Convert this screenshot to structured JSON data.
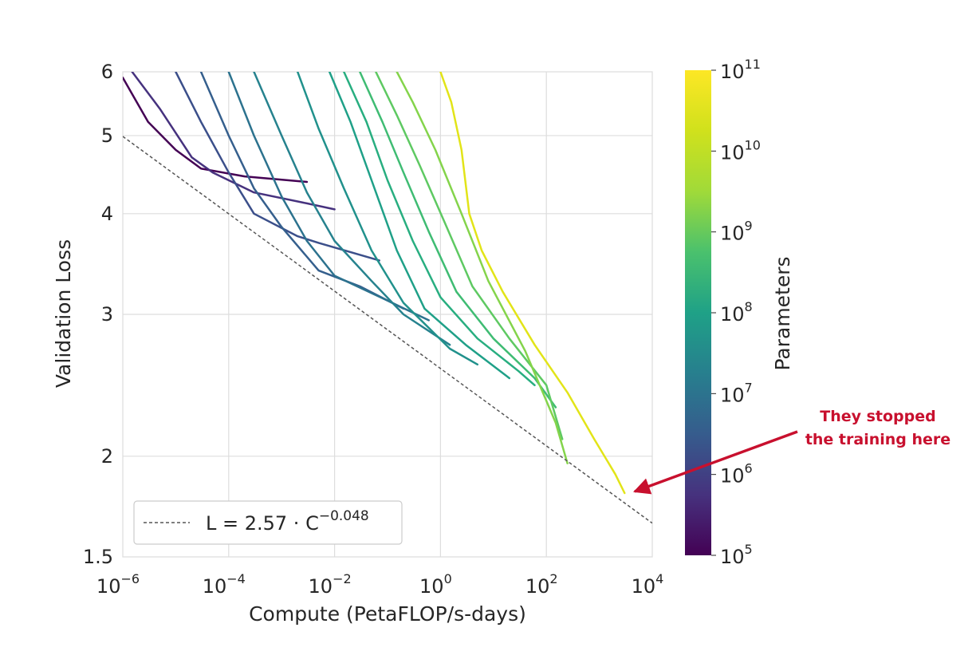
{
  "chart_data": {
    "type": "line",
    "xlabel": "Compute (PetaFLOP/s-days)",
    "ylabel": "Validation Loss",
    "x_scale": "log",
    "y_scale": "log",
    "xlim": [
      1e-06,
      10000.0
    ],
    "ylim": [
      1.5,
      6
    ],
    "x_ticks": [
      {
        "base": "10",
        "exp": "−6"
      },
      {
        "base": "10",
        "exp": "−4"
      },
      {
        "base": "10",
        "exp": "−2"
      },
      {
        "base": "10",
        "exp": "0"
      },
      {
        "base": "10",
        "exp": "2"
      },
      {
        "base": "10",
        "exp": "4"
      }
    ],
    "x_tick_values": [
      1e-06,
      0.0001,
      0.01,
      1,
      100,
      10000
    ],
    "y_ticks": [
      "1.5",
      "2",
      "3",
      "4",
      "5",
      "6"
    ],
    "y_tick_values": [
      1.5,
      2,
      3,
      4,
      5,
      6
    ],
    "grid": true,
    "fit_line": {
      "label_prefix": "L = 2.57 · C",
      "label_exp": "−0.048",
      "a": 2.57,
      "b": -0.048
    },
    "legend_position": "lower-left",
    "colorbar": {
      "label": "Parameters",
      "scale": "log",
      "range": [
        100000.0,
        100000000000.0
      ],
      "ticks": [
        {
          "base": "10",
          "exp": "5"
        },
        {
          "base": "10",
          "exp": "6"
        },
        {
          "base": "10",
          "exp": "7"
        },
        {
          "base": "10",
          "exp": "8"
        },
        {
          "base": "10",
          "exp": "9"
        },
        {
          "base": "10",
          "exp": "10"
        },
        {
          "base": "10",
          "exp": "11"
        }
      ],
      "colormap": "viridis"
    },
    "series": [
      {
        "params": 100000.0,
        "color": "#440154",
        "points": [
          [
            1e-06,
            5.9
          ],
          [
            3e-06,
            5.2
          ],
          [
            1e-05,
            4.8
          ],
          [
            3e-05,
            4.55
          ],
          [
            0.0002,
            4.45
          ],
          [
            0.003,
            4.38
          ]
        ]
      },
      {
        "params": 300000.0,
        "color": "#46327e",
        "points": [
          [
            1.5e-06,
            6.0
          ],
          [
            5e-06,
            5.4
          ],
          [
            2e-05,
            4.7
          ],
          [
            5e-05,
            4.5
          ],
          [
            0.0003,
            4.25
          ],
          [
            0.003,
            4.12
          ],
          [
            0.01,
            4.05
          ]
        ]
      },
      {
        "params": 1000000.0,
        "color": "#3b4f8a",
        "points": [
          [
            1e-05,
            6.0
          ],
          [
            3e-05,
            5.2
          ],
          [
            0.0001,
            4.5
          ],
          [
            0.0003,
            4.0
          ],
          [
            0.002,
            3.75
          ],
          [
            0.005,
            3.68
          ],
          [
            0.07,
            3.5
          ]
        ]
      },
      {
        "params": 2000000.0,
        "color": "#355f8d",
        "points": [
          [
            3e-05,
            6.0
          ],
          [
            0.0001,
            5.0
          ],
          [
            0.0003,
            4.3
          ],
          [
            0.001,
            3.85
          ],
          [
            0.005,
            3.4
          ],
          [
            0.03,
            3.25
          ],
          [
            0.2,
            3.05
          ]
        ]
      },
      {
        "params": 5000000.0,
        "color": "#2c728e",
        "points": [
          [
            0.0001,
            6.0
          ],
          [
            0.0003,
            5.0
          ],
          [
            0.001,
            4.2
          ],
          [
            0.003,
            3.7
          ],
          [
            0.01,
            3.35
          ],
          [
            0.1,
            3.12
          ],
          [
            0.6,
            2.95
          ]
        ]
      },
      {
        "params": 10000000.0,
        "color": "#26828e",
        "points": [
          [
            0.0003,
            6.0
          ],
          [
            0.001,
            5.0
          ],
          [
            0.003,
            4.25
          ],
          [
            0.01,
            3.7
          ],
          [
            0.05,
            3.3
          ],
          [
            0.2,
            3.0
          ],
          [
            1.5,
            2.75
          ]
        ]
      },
      {
        "params": 30000000.0,
        "color": "#21918c",
        "points": [
          [
            0.002,
            6.0
          ],
          [
            0.005,
            5.1
          ],
          [
            0.015,
            4.3
          ],
          [
            0.05,
            3.6
          ],
          [
            0.2,
            3.1
          ],
          [
            1.5,
            2.72
          ],
          [
            5,
            2.6
          ]
        ]
      },
      {
        "params": 100000000.0,
        "color": "#1fa088",
        "points": [
          [
            0.008,
            6.0
          ],
          [
            0.02,
            5.2
          ],
          [
            0.05,
            4.4
          ],
          [
            0.15,
            3.6
          ],
          [
            0.5,
            3.05
          ],
          [
            3,
            2.75
          ],
          [
            20,
            2.5
          ]
        ]
      },
      {
        "params": 300000000.0,
        "color": "#28ae80",
        "points": [
          [
            0.015,
            6.0
          ],
          [
            0.04,
            5.2
          ],
          [
            0.1,
            4.4
          ],
          [
            0.3,
            3.7
          ],
          [
            1,
            3.15
          ],
          [
            5,
            2.8
          ],
          [
            30,
            2.55
          ],
          [
            60,
            2.45
          ]
        ]
      },
      {
        "params": 1000000000.0,
        "color": "#3fbc73",
        "points": [
          [
            0.03,
            6.0
          ],
          [
            0.08,
            5.2
          ],
          [
            0.2,
            4.5
          ],
          [
            0.6,
            3.8
          ],
          [
            2,
            3.2
          ],
          [
            10,
            2.8
          ],
          [
            60,
            2.5
          ],
          [
            150,
            2.3
          ]
        ]
      },
      {
        "params": 3000000000.0,
        "color": "#5ec962",
        "points": [
          [
            0.06,
            6.0
          ],
          [
            0.15,
            5.3
          ],
          [
            0.4,
            4.6
          ],
          [
            1.2,
            3.9
          ],
          [
            4,
            3.25
          ],
          [
            20,
            2.8
          ],
          [
            100,
            2.45
          ],
          [
            200,
            2.1
          ]
        ]
      },
      {
        "params": 10000000000.0,
        "color": "#84d44b",
        "points": [
          [
            0.15,
            6.0
          ],
          [
            0.3,
            5.5
          ],
          [
            0.8,
            4.8
          ],
          [
            2.5,
            4.0
          ],
          [
            8,
            3.3
          ],
          [
            40,
            2.7
          ],
          [
            150,
            2.2
          ],
          [
            250,
            1.96
          ]
        ]
      },
      {
        "params": 100000000000.0,
        "color": "#e2e418",
        "points": [
          [
            1,
            6.0
          ],
          [
            1.6,
            5.5
          ],
          [
            2.5,
            4.8
          ],
          [
            3.5,
            4.0
          ],
          [
            6,
            3.6
          ],
          [
            15,
            3.2
          ],
          [
            60,
            2.75
          ],
          [
            250,
            2.4
          ],
          [
            800,
            2.1
          ],
          [
            2000,
            1.9
          ],
          [
            3000,
            1.8
          ]
        ]
      }
    ],
    "annotation": {
      "line1": "They stopped",
      "line2": "the training here",
      "color": "#c8102e"
    }
  }
}
